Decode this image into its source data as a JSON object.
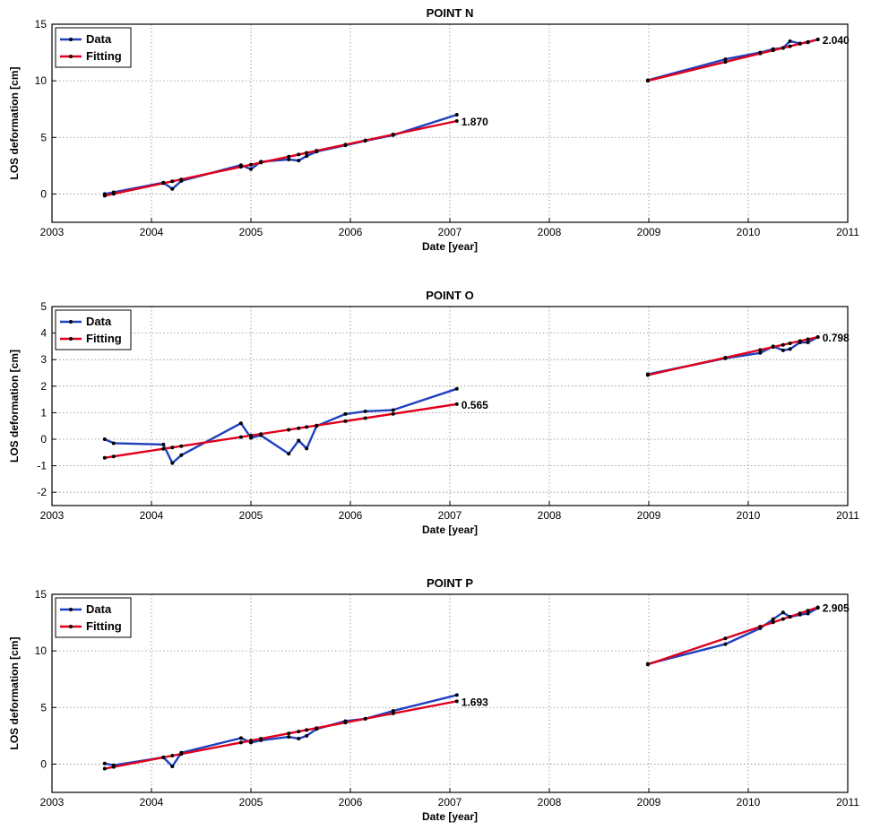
{
  "chart_data": [
    {
      "type": "line",
      "title": "POINT N",
      "xlabel": "Date [year]",
      "ylabel": "LOS deformation [cm]",
      "xlim": [
        2003,
        2011
      ],
      "ylim": [
        -2.5,
        15
      ],
      "xticks": [
        2003,
        2004,
        2005,
        2006,
        2007,
        2008,
        2009,
        2010,
        2011
      ],
      "yticks": [
        0,
        5,
        10,
        15
      ],
      "grid": true,
      "legend": "top-left",
      "series": [
        {
          "name": "Data",
          "color": "#1f3fbf",
          "segments": [
            {
              "x": [
                2003.53,
                2003.62,
                2004.12,
                2004.21,
                2004.3,
                2004.9,
                2005.0,
                2005.1,
                2005.38,
                2005.48,
                2005.56,
                2005.66,
                2005.95,
                2006.15,
                2006.43,
                2007.07
              ],
              "y": [
                0.0,
                0.15,
                1.0,
                0.45,
                1.15,
                2.55,
                2.2,
                2.85,
                3.05,
                2.95,
                3.35,
                3.75,
                4.3,
                4.7,
                5.2,
                7.0
              ]
            },
            {
              "x": [
                2008.99,
                2009.77,
                2010.12,
                2010.25,
                2010.35,
                2010.42,
                2010.52,
                2010.6,
                2010.7
              ],
              "y": [
                10.05,
                11.9,
                12.5,
                12.8,
                12.9,
                13.5,
                13.3,
                13.4,
                13.65
              ]
            }
          ]
        },
        {
          "name": "Fitting",
          "color": "#e0001b",
          "segments": [
            {
              "x": [
                2003.53,
                2007.07
              ],
              "y": [
                -0.15,
                6.45
              ]
            },
            {
              "x": [
                2008.99,
                2010.7
              ],
              "y": [
                10.0,
                13.65
              ]
            }
          ]
        }
      ],
      "annotations": [
        {
          "text": "1.870",
          "x": 2007.07,
          "y": 6.45
        },
        {
          "text": "2.040",
          "x": 2010.7,
          "y": 13.65
        }
      ]
    },
    {
      "type": "line",
      "title": "POINT O",
      "xlabel": "Date [year]",
      "ylabel": "LOS deformation [cm]",
      "xlim": [
        2003,
        2011
      ],
      "ylim": [
        -2.5,
        5
      ],
      "xticks": [
        2003,
        2004,
        2005,
        2006,
        2007,
        2008,
        2009,
        2010,
        2011
      ],
      "yticks": [
        -2,
        -1,
        0,
        1,
        2,
        3,
        4,
        5
      ],
      "grid": true,
      "legend": "top-left",
      "series": [
        {
          "name": "Data",
          "color": "#1f3fbf",
          "segments": [
            {
              "x": [
                2003.53,
                2003.62,
                2004.12,
                2004.21,
                2004.3,
                2004.9,
                2005.0,
                2005.1,
                2005.38,
                2005.48,
                2005.56,
                2005.66,
                2005.95,
                2006.15,
                2006.43,
                2007.07
              ],
              "y": [
                0.0,
                -0.15,
                -0.2,
                -0.9,
                -0.6,
                0.6,
                0.05,
                0.15,
                -0.55,
                -0.05,
                -0.35,
                0.5,
                0.95,
                1.05,
                1.1,
                1.9
              ]
            },
            {
              "x": [
                2008.99,
                2009.77,
                2010.12,
                2010.25,
                2010.35,
                2010.42,
                2010.52,
                2010.6,
                2010.7
              ],
              "y": [
                2.45,
                3.05,
                3.25,
                3.5,
                3.35,
                3.4,
                3.65,
                3.65,
                3.85
              ]
            }
          ]
        },
        {
          "name": "Fitting",
          "color": "#e0001b",
          "segments": [
            {
              "x": [
                2003.53,
                2007.07
              ],
              "y": [
                -0.7,
                1.32
              ]
            },
            {
              "x": [
                2008.99,
                2010.7
              ],
              "y": [
                2.42,
                3.85
              ]
            }
          ]
        }
      ],
      "annotations": [
        {
          "text": "0.565",
          "x": 2007.07,
          "y": 1.32
        },
        {
          "text": "0.798",
          "x": 2010.7,
          "y": 3.85
        }
      ]
    },
    {
      "type": "line",
      "title": "POINT P",
      "xlabel": "Date [year]",
      "ylabel": "LOS deformation [cm]",
      "xlim": [
        2003,
        2011
      ],
      "ylim": [
        -2.5,
        15
      ],
      "xticks": [
        2003,
        2004,
        2005,
        2006,
        2007,
        2008,
        2009,
        2010,
        2011
      ],
      "yticks": [
        0,
        5,
        10,
        15
      ],
      "grid": true,
      "legend": "top-left",
      "series": [
        {
          "name": "Data",
          "color": "#1f3fbf",
          "segments": [
            {
              "x": [
                2003.53,
                2003.62,
                2004.12,
                2004.21,
                2004.3,
                2004.9,
                2005.0,
                2005.1,
                2005.38,
                2005.48,
                2005.56,
                2005.66,
                2005.95,
                2006.15,
                2006.43,
                2007.07
              ],
              "y": [
                0.05,
                -0.1,
                0.6,
                -0.2,
                1.0,
                2.3,
                1.9,
                2.1,
                2.4,
                2.25,
                2.5,
                3.1,
                3.8,
                4.0,
                4.7,
                6.1
              ]
            },
            {
              "x": [
                2008.99,
                2009.77,
                2010.12,
                2010.25,
                2010.35,
                2010.42,
                2010.52,
                2010.6,
                2010.7
              ],
              "y": [
                8.85,
                10.6,
                12.0,
                12.8,
                13.4,
                13.0,
                13.2,
                13.3,
                13.8
              ]
            }
          ]
        },
        {
          "name": "Fitting",
          "color": "#e0001b",
          "segments": [
            {
              "x": [
                2003.53,
                2007.07
              ],
              "y": [
                -0.4,
                5.55
              ]
            },
            {
              "x": [
                2008.99,
                2010.7
              ],
              "y": [
                8.8,
                13.85
              ]
            }
          ]
        }
      ],
      "annotations": [
        {
          "text": "1.693",
          "x": 2007.07,
          "y": 5.55
        },
        {
          "text": "2.905",
          "x": 2010.7,
          "y": 13.85
        }
      ]
    }
  ]
}
